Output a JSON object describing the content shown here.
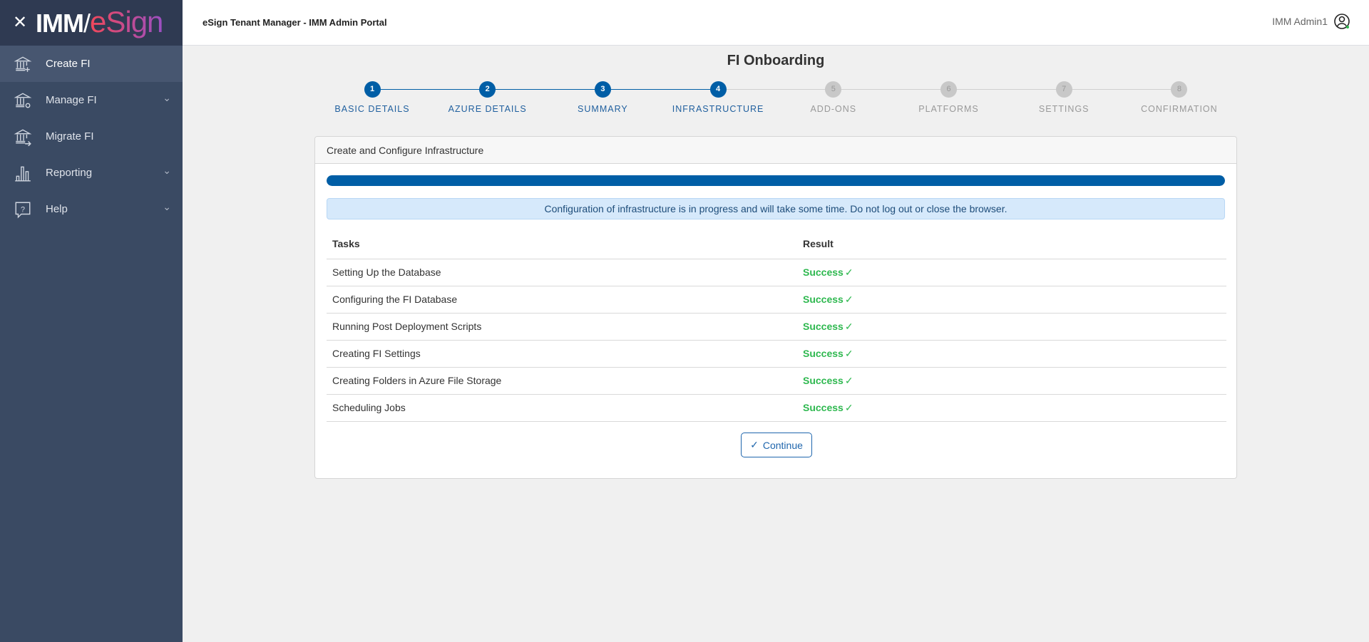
{
  "sidebar": {
    "logo_text": "IMM/eSign",
    "items": [
      {
        "label": "Create FI",
        "icon": "bank-plus-icon",
        "active": true,
        "expandable": false
      },
      {
        "label": "Manage FI",
        "icon": "bank-gear-icon",
        "active": false,
        "expandable": true
      },
      {
        "label": "Migrate FI",
        "icon": "bank-arrow-icon",
        "active": false,
        "expandable": false
      },
      {
        "label": "Reporting",
        "icon": "bar-chart-icon",
        "active": false,
        "expandable": true
      },
      {
        "label": "Help",
        "icon": "help-bubble-icon",
        "active": false,
        "expandable": true
      }
    ]
  },
  "header": {
    "title": "eSign Tenant Manager - IMM Admin Portal",
    "user": "IMM Admin1"
  },
  "page": {
    "title": "FI Onboarding"
  },
  "steps": [
    {
      "num": "1",
      "label": "BASIC DETAILS",
      "done": true
    },
    {
      "num": "2",
      "label": "AZURE DETAILS",
      "done": true
    },
    {
      "num": "3",
      "label": "SUMMARY",
      "done": true
    },
    {
      "num": "4",
      "label": "INFRASTRUCTURE",
      "done": true
    },
    {
      "num": "5",
      "label": "ADD-ONS",
      "done": false
    },
    {
      "num": "6",
      "label": "PLATFORMS",
      "done": false
    },
    {
      "num": "7",
      "label": "SETTINGS",
      "done": false
    },
    {
      "num": "8",
      "label": "CONFIRMATION",
      "done": false
    }
  ],
  "panel": {
    "title": "Create and Configure Infrastructure",
    "progress_percent": 100,
    "info": "Configuration of infrastructure is in progress and will take some time. Do not log out or close the browser.",
    "columns": [
      "Tasks",
      "Result"
    ],
    "rows": [
      {
        "task": "Setting Up the Database",
        "result": "Success"
      },
      {
        "task": "Configuring the FI Database",
        "result": "Success"
      },
      {
        "task": "Running Post Deployment Scripts",
        "result": "Success"
      },
      {
        "task": "Creating FI Settings",
        "result": "Success"
      },
      {
        "task": "Creating Folders in Azure File Storage",
        "result": "Success"
      },
      {
        "task": "Scheduling Jobs",
        "result": "Success"
      }
    ],
    "continue_label": "Continue"
  },
  "colors": {
    "primary": "#005ea6",
    "sidebar": "#3a4a63",
    "success": "#2eb84f",
    "inactive": "#c8c8c8"
  }
}
